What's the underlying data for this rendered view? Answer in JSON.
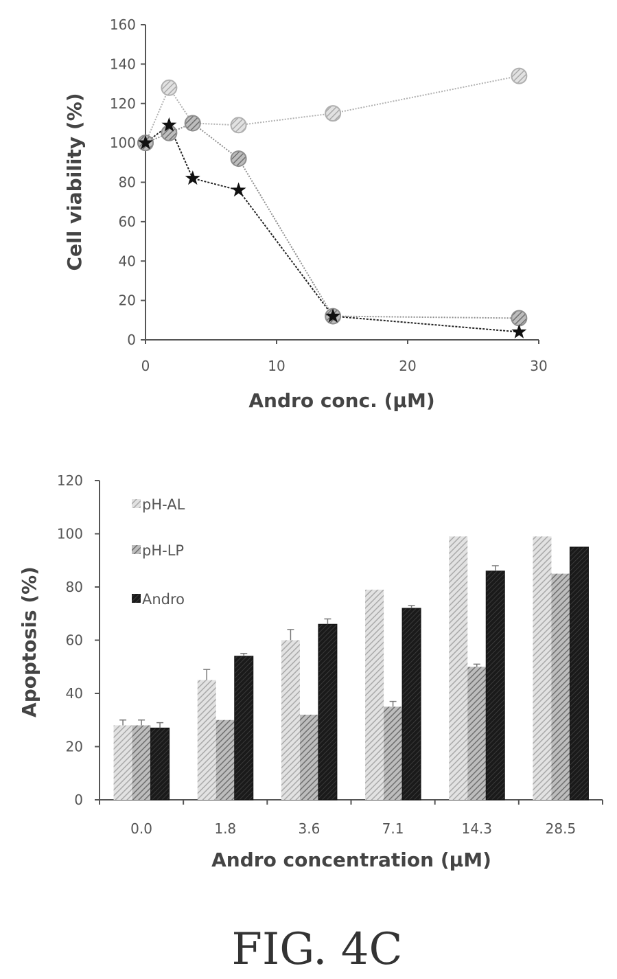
{
  "figure_caption": "FIG. 4C",
  "chart_data": [
    {
      "type": "line",
      "title": "",
      "xlabel": "Andro conc. (μM)",
      "ylabel": "Cell viability (%)",
      "xlim": [
        0,
        30
      ],
      "ylim": [
        0,
        160
      ],
      "xticks": [
        "0",
        "10",
        "20",
        "30"
      ],
      "yticks": [
        "0",
        "20",
        "40",
        "60",
        "80",
        "100",
        "120",
        "140",
        "160"
      ],
      "grid": false,
      "legend": "none",
      "series": [
        {
          "marker": "hatched-circle",
          "color": "#b0b0b0",
          "x": [
            0,
            1.8,
            3.6,
            7.1,
            14.3,
            28.5
          ],
          "y": [
            100,
            128,
            110,
            109,
            115,
            134
          ]
        },
        {
          "marker": "hatched-circle",
          "color": "#8e8e8e",
          "x": [
            0,
            1.8,
            3.6,
            7.1,
            14.3,
            28.5
          ],
          "y": [
            100,
            105,
            110,
            92,
            12,
            11
          ]
        },
        {
          "marker": "star",
          "color": "#222222",
          "x": [
            0,
            1.8,
            3.6,
            7.1,
            14.3,
            28.5
          ],
          "y": [
            100,
            109,
            82,
            76,
            12,
            4
          ]
        }
      ]
    },
    {
      "type": "bar",
      "title": "",
      "xlabel": "Andro concentration (μM)",
      "ylabel": "Apoptosis (%)",
      "ylim": [
        0,
        120
      ],
      "yticks": [
        "0",
        "20",
        "40",
        "60",
        "80",
        "100",
        "120"
      ],
      "categories": [
        "0.0",
        "1.8",
        "3.6",
        "7.1",
        "14.3",
        "28.5"
      ],
      "grid": false,
      "legend": "top-left",
      "series": [
        {
          "name": "pH-AL",
          "color": "#c4c4c4",
          "values": [
            28,
            45,
            60,
            79,
            99,
            99
          ],
          "errors": [
            2,
            4,
            4,
            0,
            0,
            0
          ]
        },
        {
          "name": "pH-LP",
          "color": "#8c8c8c",
          "values": [
            28,
            30,
            32,
            35,
            50,
            85
          ],
          "errors": [
            2,
            0,
            0,
            2,
            1,
            0
          ]
        },
        {
          "name": "Andro",
          "color": "#111111",
          "values": [
            27,
            54,
            66,
            72,
            86,
            95
          ],
          "errors": [
            2,
            1,
            2,
            1,
            2,
            0
          ]
        }
      ]
    }
  ]
}
